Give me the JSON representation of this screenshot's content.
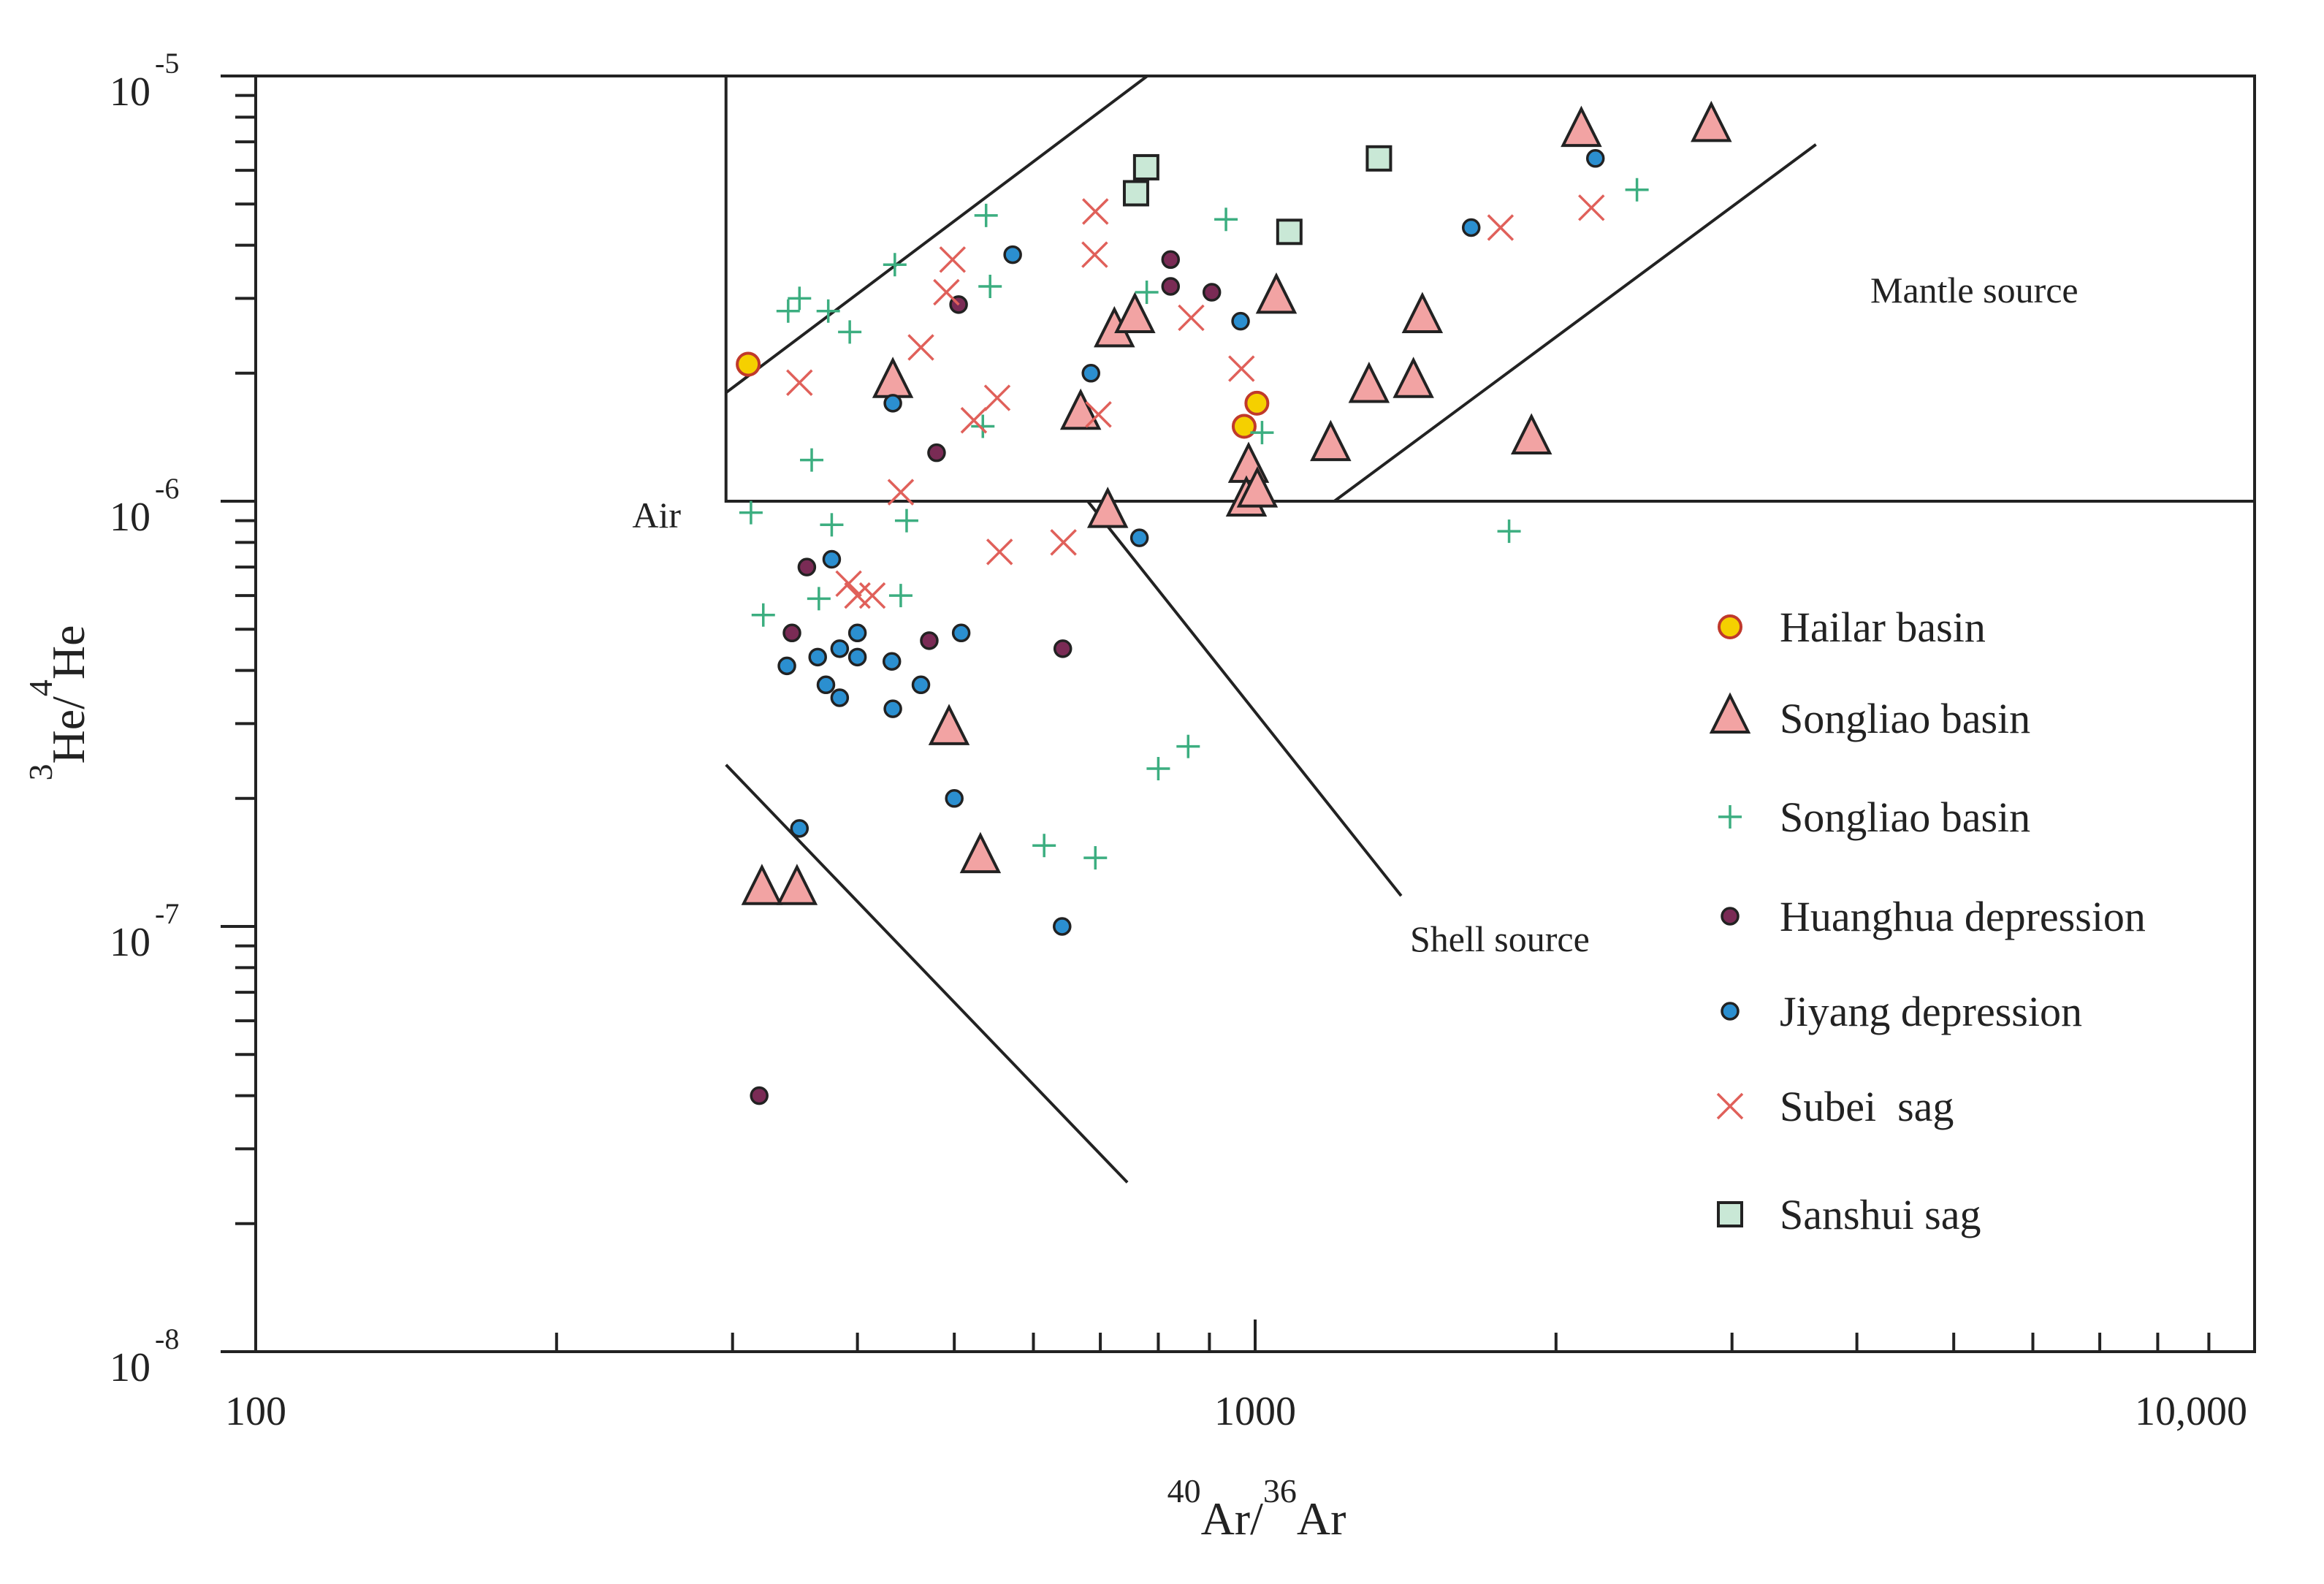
{
  "chart_data": {
    "type": "scatter",
    "x_scale": "log",
    "y_scale": "log",
    "xlim": [
      100,
      10000
    ],
    "ylim": [
      1e-08,
      1e-05
    ],
    "xlabel": {
      "sup_left": "40",
      "base_left": "Ar/",
      "sup_right": "36",
      "base_right": "Ar"
    },
    "ylabel": {
      "sup_left": "3",
      "base_left": "He/",
      "sup_right": "4",
      "base_right": "He"
    },
    "x_ticks": [
      {
        "value": 100,
        "label": "100"
      },
      {
        "value": 1000,
        "label": "1000"
      },
      {
        "value": 10000,
        "label": "10,000"
      }
    ],
    "y_ticks": [
      {
        "value": 1e-08,
        "base": "10",
        "exp": "-8"
      },
      {
        "value": 1e-07,
        "base": "10",
        "exp": "-7"
      },
      {
        "value": 1e-06,
        "base": "10",
        "exp": "-6"
      },
      {
        "value": 1e-05,
        "base": "10",
        "exp": "-5"
      }
    ],
    "regions": [
      {
        "name": "air",
        "label": "Air",
        "x_range": [
          295.5,
          10000
        ],
        "y_range": [
          1e-06,
          1e-05
        ]
      },
      {
        "name": "mantle",
        "label": "Mantle source",
        "anchor": [
          2650,
          3e-06
        ]
      },
      {
        "name": "shell",
        "label": "Shell source",
        "anchor": [
          1100,
          1.03e-07
        ]
      }
    ],
    "boundary_lines": [
      {
        "name": "upper-mantle-boundary",
        "from": [
          295.5,
          1.8e-06
        ],
        "to": [
          780,
          1e-05
        ]
      },
      {
        "name": "lower-mantle-boundary",
        "from": [
          1200,
          1e-06
        ],
        "to": [
          3640,
          6.9e-06
        ]
      },
      {
        "name": "shell-upper-boundary",
        "from": [
          680,
          1e-06
        ],
        "to": [
          1400,
          1.18e-07
        ]
      },
      {
        "name": "shell-lower-boundary",
        "from": [
          295.5,
          2.4e-07
        ],
        "to": [
          745,
          2.5e-08
        ]
      }
    ],
    "series": [
      {
        "name": "Hailar basin",
        "marker": "circle-large",
        "color": "#f5d000",
        "stroke": "#c0392b",
        "points": [
          [
            311,
            2.1e-06
          ],
          [
            975,
            1.5e-06
          ],
          [
            1004,
            1.7e-06
          ]
        ]
      },
      {
        "name": "Songliao basin",
        "marker": "triangle",
        "color": "#f2a3a3",
        "stroke": "#222222",
        "points": [
          [
            434,
            1.9e-06
          ],
          [
            669,
            1.6e-06
          ],
          [
            712,
            9.4e-07
          ],
          [
            723,
            2.5e-06
          ],
          [
            758,
            2.7e-06
          ],
          [
            985,
            1.2e-06
          ],
          [
            980,
            1e-06
          ],
          [
            1005,
            1.05e-06
          ],
          [
            1050,
            3e-06
          ],
          [
            1190,
            1.35e-06
          ],
          [
            1300,
            1.85e-06
          ],
          [
            1440,
            1.9e-06
          ],
          [
            1470,
            2.7e-06
          ],
          [
            1890,
            1.4e-06
          ],
          [
            2120,
            7.4e-06
          ],
          [
            2860,
            7.6e-06
          ],
          [
            494,
            2.9e-07
          ],
          [
            531,
            1.45e-07
          ],
          [
            321,
            1.22e-07
          ],
          [
            348,
            1.22e-07
          ]
        ]
      },
      {
        "name": "Songliao basin",
        "marker": "plus",
        "color": "#3cae80",
        "stroke": "#3cae80",
        "points": [
          [
            350,
            3e-06
          ],
          [
            341,
            2.8e-06
          ],
          [
            374,
            2.8e-06
          ],
          [
            393,
            2.5e-06
          ],
          [
            436,
            3.6e-06
          ],
          [
            538,
            4.7e-06
          ],
          [
            543,
            3.2e-06
          ],
          [
            534,
            1.5e-06
          ],
          [
            360,
            1.25e-06
          ],
          [
            313,
            9.4e-07
          ],
          [
            377,
            8.8e-07
          ],
          [
            448,
            9e-07
          ],
          [
            322,
            5.4e-07
          ],
          [
            366,
            5.9e-07
          ],
          [
            442,
            6e-07
          ],
          [
            615,
            1.55e-07
          ],
          [
            692,
            1.45e-07
          ],
          [
            800,
            2.35e-07
          ],
          [
            857,
            2.65e-07
          ],
          [
            779,
            3.1e-06
          ],
          [
            935,
            4.6e-06
          ],
          [
            1016,
            1.45e-06
          ],
          [
            1795,
            8.5e-07
          ],
          [
            2410,
            5.4e-06
          ]
        ]
      },
      {
        "name": "Huanghua depression",
        "marker": "dot",
        "color": "#7a2b55",
        "stroke": "#222222",
        "points": [
          [
            505,
            2.9e-06
          ],
          [
            480,
            1.3e-06
          ],
          [
            356,
            7e-07
          ],
          [
            344,
            4.9e-07
          ],
          [
            472,
            4.7e-07
          ],
          [
            642,
            4.5e-07
          ],
          [
            823,
            3.7e-06
          ],
          [
            823,
            3.2e-06
          ],
          [
            905,
            3.1e-06
          ],
          [
            319,
            4e-08
          ]
        ]
      },
      {
        "name": "Jiyang depression",
        "marker": "dot",
        "color": "#2b8fd0",
        "stroke": "#222222",
        "points": [
          [
            572,
            3.8e-06
          ],
          [
            434,
            1.7e-06
          ],
          [
            685,
            2e-06
          ],
          [
            967,
            2.65e-06
          ],
          [
            1645,
            4.4e-06
          ],
          [
            2190,
            6.4e-06
          ],
          [
            377,
            7.3e-07
          ],
          [
            400,
            4.9e-07
          ],
          [
            384,
            4.5e-07
          ],
          [
            365,
            4.3e-07
          ],
          [
            400,
            4.3e-07
          ],
          [
            340,
            4.1e-07
          ],
          [
            433,
            4.2e-07
          ],
          [
            372,
            3.7e-07
          ],
          [
            463,
            3.7e-07
          ],
          [
            384,
            3.45e-07
          ],
          [
            434,
            3.25e-07
          ],
          [
            508,
            4.9e-07
          ],
          [
            766,
            8.2e-07
          ],
          [
            350,
            1.7e-07
          ],
          [
            500,
            2e-07
          ],
          [
            641,
            1e-07
          ]
        ]
      },
      {
        "name": "Subei  sag",
        "marker": "x",
        "color": "#e0605a",
        "stroke": "#e0605a",
        "points": [
          [
            692,
            4.8e-06
          ],
          [
            691,
            3.8e-06
          ],
          [
            498,
            3.7e-06
          ],
          [
            491,
            3.1e-06
          ],
          [
            463,
            2.3e-06
          ],
          [
            350,
            1.9e-06
          ],
          [
            523,
            1.55e-06
          ],
          [
            552,
            1.75e-06
          ],
          [
            697,
            1.6e-06
          ],
          [
            863,
            2.7e-06
          ],
          [
            969,
            2.05e-06
          ],
          [
            442,
            1.05e-06
          ],
          [
            643,
            8e-07
          ],
          [
            555,
            7.6e-07
          ],
          [
            392,
            6.4e-07
          ],
          [
            400,
            6e-07
          ],
          [
            414,
            6e-07
          ],
          [
            1760,
            4.4e-06
          ],
          [
            2170,
            4.9e-06
          ]
        ]
      },
      {
        "name": "Sanshui sag",
        "marker": "square",
        "color": "#c9e8d6",
        "stroke": "#222222",
        "points": [
          [
            760,
            5.3e-06
          ],
          [
            778,
            6.1e-06
          ],
          [
            1082,
            4.3e-06
          ],
          [
            1330,
            6.4e-06
          ]
        ]
      }
    ]
  }
}
